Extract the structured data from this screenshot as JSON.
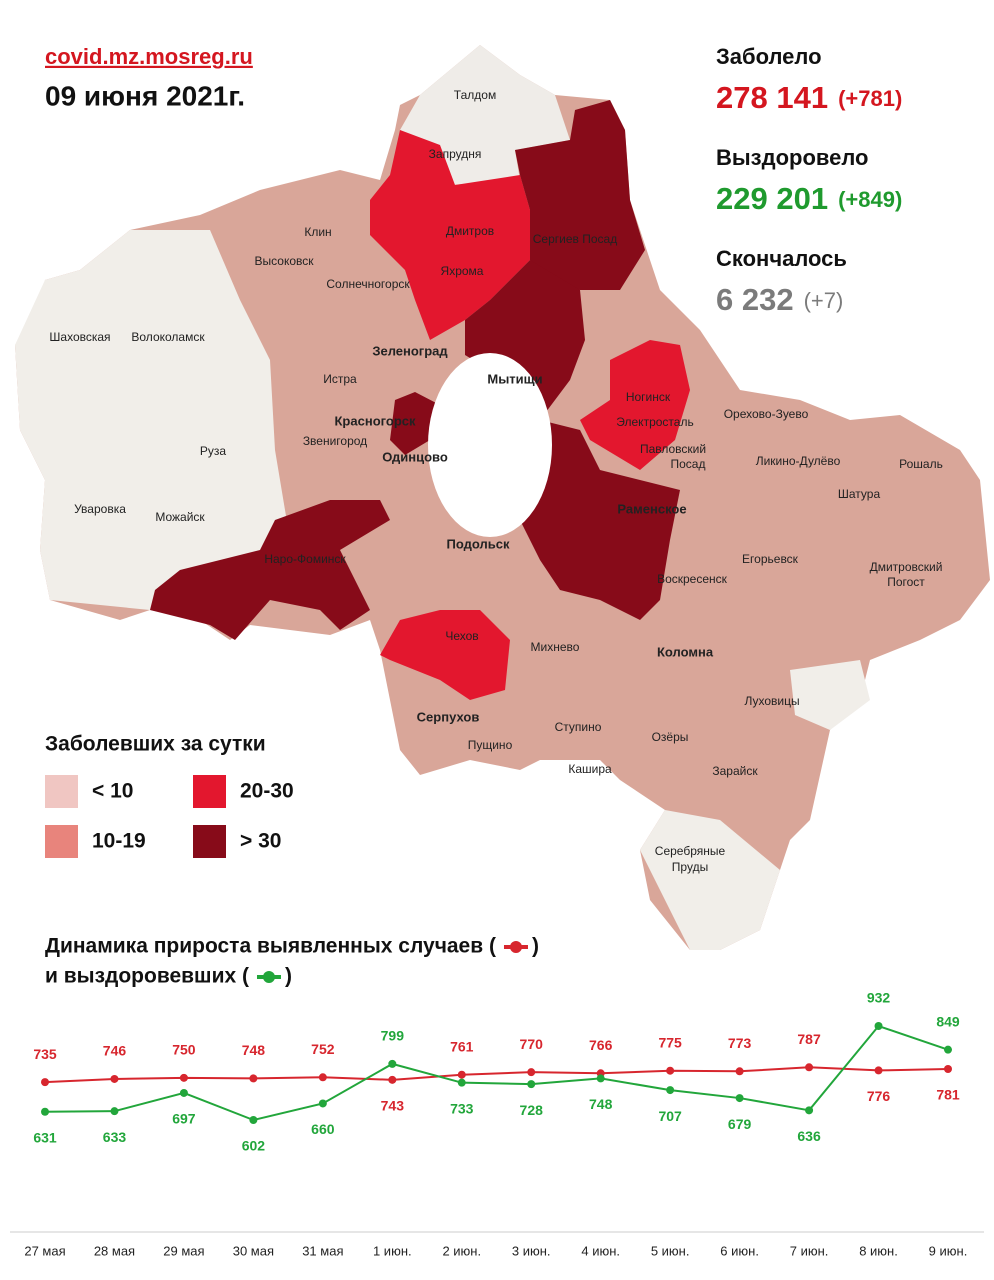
{
  "header": {
    "site": "covid.mz.mosreg.ru",
    "date": "09 июня 2021г."
  },
  "stats": [
    {
      "label": "Заболело",
      "value": "278 141",
      "delta": "(+781)",
      "color": "#d4161f"
    },
    {
      "label": "Выздоровело",
      "value": "229 201",
      "delta": "(+849)",
      "color": "#1f9a2e"
    },
    {
      "label": "Скончалось",
      "value": "6 232",
      "delta": "(+7)",
      "color": "#7b7b7b"
    }
  ],
  "map": {
    "labels": [
      "Талдом",
      "Запрудня",
      "Дмитров",
      "Яхрома",
      "Сергиев Посад",
      "Клин",
      "Высоковск",
      "Солнечногорск",
      "Шаховская",
      "Волоколамск",
      "Зеленоград",
      "Истра",
      "Мытищи",
      "Красногорск",
      "Ногинск",
      "Орехово-Зуево",
      "Электросталь",
      "Звенигород",
      "Руза",
      "Одинцово",
      "Павловский",
      "Посад",
      "Ликино-Дулёво",
      "Рошаль",
      "Уваровка",
      "Можайск",
      "Шатура",
      "Раменское",
      "Наро-Фоминск",
      "Подольск",
      "Егорьевск",
      "Дмитровский",
      "Погост",
      "Воскресенск",
      "Чехов",
      "Михнево",
      "Коломна",
      "Луховицы",
      "Серпухов",
      "Пущино",
      "Ступино",
      "Озёры",
      "Кашира",
      "Зарайск",
      "Серебряные",
      "Пруды"
    ]
  },
  "legend": {
    "title": "Заболевших за сутки",
    "items": [
      {
        "label": "< 10",
        "color": "#f0c6c2"
      },
      {
        "label": "20-30",
        "color": "#e3172e"
      },
      {
        "label": "10-19",
        "color": "#e8847c"
      },
      {
        "label": "> 30",
        "color": "#870b19"
      }
    ]
  },
  "chart_data": {
    "type": "line",
    "title_line1": "Динамика прироста выявленных случаев (",
    "title_line2": "и выздоровевших (",
    "title_close": ")",
    "categories": [
      "27 мая",
      "28 мая",
      "29 мая",
      "30 мая",
      "31 мая",
      "1 июн.",
      "2 июн.",
      "3 июн.",
      "4 июн.",
      "5 июн.",
      "6 июн.",
      "7 июн.",
      "8 июн.",
      "9 июн."
    ],
    "series": [
      {
        "color": "#d7262e",
        "values": [
          735,
          746,
          750,
          748,
          752,
          743,
          761,
          770,
          766,
          775,
          773,
          787,
          776,
          781
        ]
      },
      {
        "color": "#22a63b",
        "values": [
          631,
          633,
          697,
          602,
          660,
          799,
          733,
          728,
          748,
          707,
          679,
          636,
          932,
          849
        ]
      }
    ]
  }
}
